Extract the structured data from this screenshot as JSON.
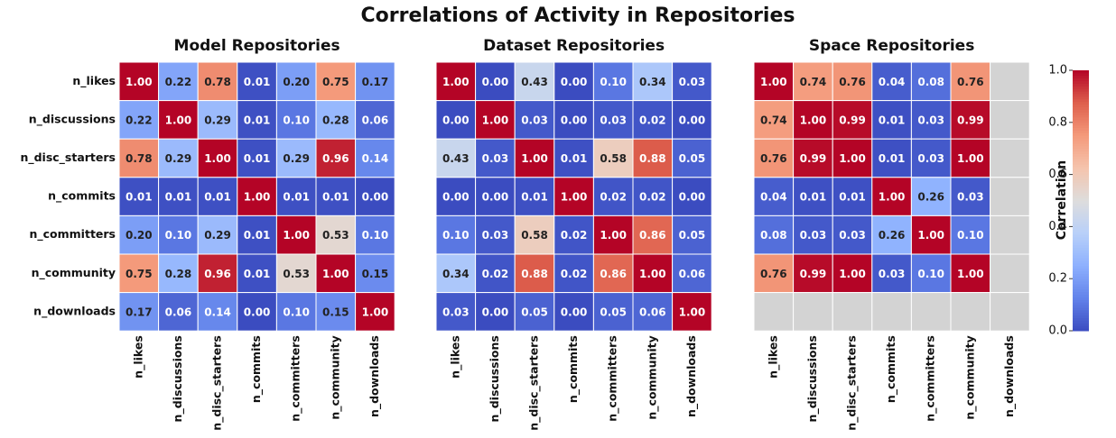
{
  "title": "Correlations of Activity in Repositories",
  "colorbar": {
    "label": "Correlation",
    "colormap": "coolwarm",
    "lim": [
      0,
      1
    ],
    "ticks": [
      {
        "value": 0,
        "label": "0.0"
      },
      0.2,
      0.4,
      0.6,
      0.8,
      {
        "value": 1,
        "label": "1.0"
      }
    ],
    "missing_color": "#d3d3d3"
  },
  "chart_data": [
    {
      "type": "heatmap",
      "title": "Model Repositories",
      "x_categories": [
        "n_likes",
        "n_discussions",
        "n_disc_starters",
        "n_commits",
        "n_committers",
        "n_community",
        "n_downloads"
      ],
      "y_categories": [
        "n_likes",
        "n_discussions",
        "n_disc_starters",
        "n_commits",
        "n_committers",
        "n_community",
        "n_downloads"
      ],
      "values": [
        [
          1,
          0.22,
          0.78,
          0.01,
          0.2,
          0.75,
          0.17
        ],
        [
          0.22,
          1,
          0.29,
          0.01,
          0.1,
          0.28,
          0.06
        ],
        [
          0.78,
          0.29,
          1,
          0.01,
          0.29,
          0.96,
          0.14
        ],
        [
          0.01,
          0.01,
          0.01,
          1,
          0.01,
          0.01,
          0
        ],
        [
          0.2,
          0.1,
          0.29,
          0.01,
          1,
          0.53,
          0.1
        ],
        [
          0.75,
          0.28,
          0.96,
          0.01,
          0.53,
          1,
          0.15
        ],
        [
          0.17,
          0.06,
          0.14,
          0,
          0.1,
          0.15,
          1
        ]
      ],
      "value_labels": [
        [
          "1.00",
          "0.22",
          "0.78",
          "0.01",
          "0.20",
          "0.75",
          "0.17"
        ],
        [
          "0.22",
          "1.00",
          "0.29",
          "0.01",
          "0.10",
          "0.28",
          "0.06"
        ],
        [
          "0.78",
          "0.29",
          "1.00",
          "0.01",
          "0.29",
          "0.96",
          "0.14"
        ],
        [
          "0.01",
          "0.01",
          "0.01",
          "1.00",
          "0.01",
          "0.01",
          "0.00"
        ],
        [
          "0.20",
          "0.10",
          "0.29",
          "0.01",
          "1.00",
          "0.53",
          "0.10"
        ],
        [
          "0.75",
          "0.28",
          "0.96",
          "0.01",
          "0.53",
          "1.00",
          "0.15"
        ],
        [
          "0.17",
          "0.06",
          "0.14",
          "0.00",
          "0.10",
          "0.15",
          "1.00"
        ]
      ]
    },
    {
      "type": "heatmap",
      "title": "Dataset Repositories",
      "x_categories": [
        "n_likes",
        "n_discussions",
        "n_disc_starters",
        "n_commits",
        "n_committers",
        "n_community",
        "n_downloads"
      ],
      "values": [
        [
          1,
          0,
          0.43,
          0,
          0.1,
          0.34,
          0.03
        ],
        [
          0,
          1,
          0.03,
          0,
          0.03,
          0.02,
          0
        ],
        [
          0.43,
          0.03,
          1,
          0.01,
          0.58,
          0.88,
          0.05
        ],
        [
          0,
          0,
          0.01,
          1,
          0.02,
          0.02,
          0
        ],
        [
          0.1,
          0.03,
          0.58,
          0.02,
          1,
          0.86,
          0.05
        ],
        [
          0.34,
          0.02,
          0.88,
          0.02,
          0.86,
          1,
          0.06
        ],
        [
          0.03,
          0,
          0.05,
          0,
          0.05,
          0.06,
          1
        ]
      ],
      "value_labels": [
        [
          "1.00",
          "0.00",
          "0.43",
          "0.00",
          "0.10",
          "0.34",
          "0.03"
        ],
        [
          "0.00",
          "1.00",
          "0.03",
          "0.00",
          "0.03",
          "0.02",
          "0.00"
        ],
        [
          "0.43",
          "0.03",
          "1.00",
          "0.01",
          "0.58",
          "0.88",
          "0.05"
        ],
        [
          "0.00",
          "0.00",
          "0.01",
          "1.00",
          "0.02",
          "0.02",
          "0.00"
        ],
        [
          "0.10",
          "0.03",
          "0.58",
          "0.02",
          "1.00",
          "0.86",
          "0.05"
        ],
        [
          "0.34",
          "0.02",
          "0.88",
          "0.02",
          "0.86",
          "1.00",
          "0.06"
        ],
        [
          "0.03",
          "0.00",
          "0.05",
          "0.00",
          "0.05",
          "0.06",
          "1.00"
        ]
      ]
    },
    {
      "type": "heatmap",
      "title": "Space Repositories",
      "x_categories": [
        "n_likes",
        "n_discussions",
        "n_disc_starters",
        "n_commits",
        "n_committers",
        "n_community",
        "n_downloads"
      ],
      "values": [
        [
          1,
          0.74,
          0.76,
          0.04,
          0.08,
          0.76,
          null
        ],
        [
          0.74,
          1,
          0.99,
          0.01,
          0.03,
          0.99,
          null
        ],
        [
          0.76,
          0.99,
          1,
          0.01,
          0.03,
          1,
          null
        ],
        [
          0.04,
          0.01,
          0.01,
          1,
          0.26,
          0.03,
          null
        ],
        [
          0.08,
          0.03,
          0.03,
          0.26,
          1,
          0.1,
          null
        ],
        [
          0.76,
          0.99,
          1,
          0.03,
          0.1,
          1,
          null
        ],
        [
          null,
          null,
          null,
          null,
          null,
          null,
          null
        ]
      ],
      "value_labels": [
        [
          "1.00",
          "0.74",
          "0.76",
          "0.04",
          "0.08",
          "0.76",
          null
        ],
        [
          "0.74",
          "1.00",
          "0.99",
          "0.01",
          "0.03",
          "0.99",
          null
        ],
        [
          "0.76",
          "0.99",
          "1.00",
          "0.01",
          "0.03",
          "1.00",
          null
        ],
        [
          "0.04",
          "0.01",
          "0.01",
          "1.00",
          "0.26",
          "0.03",
          null
        ],
        [
          "0.08",
          "0.03",
          "0.03",
          "0.26",
          "1.00",
          "0.10",
          null
        ],
        [
          "0.76",
          "0.99",
          "1.00",
          "0.03",
          "0.10",
          "1.00",
          null
        ],
        [
          null,
          null,
          null,
          null,
          null,
          null,
          null
        ]
      ]
    }
  ]
}
